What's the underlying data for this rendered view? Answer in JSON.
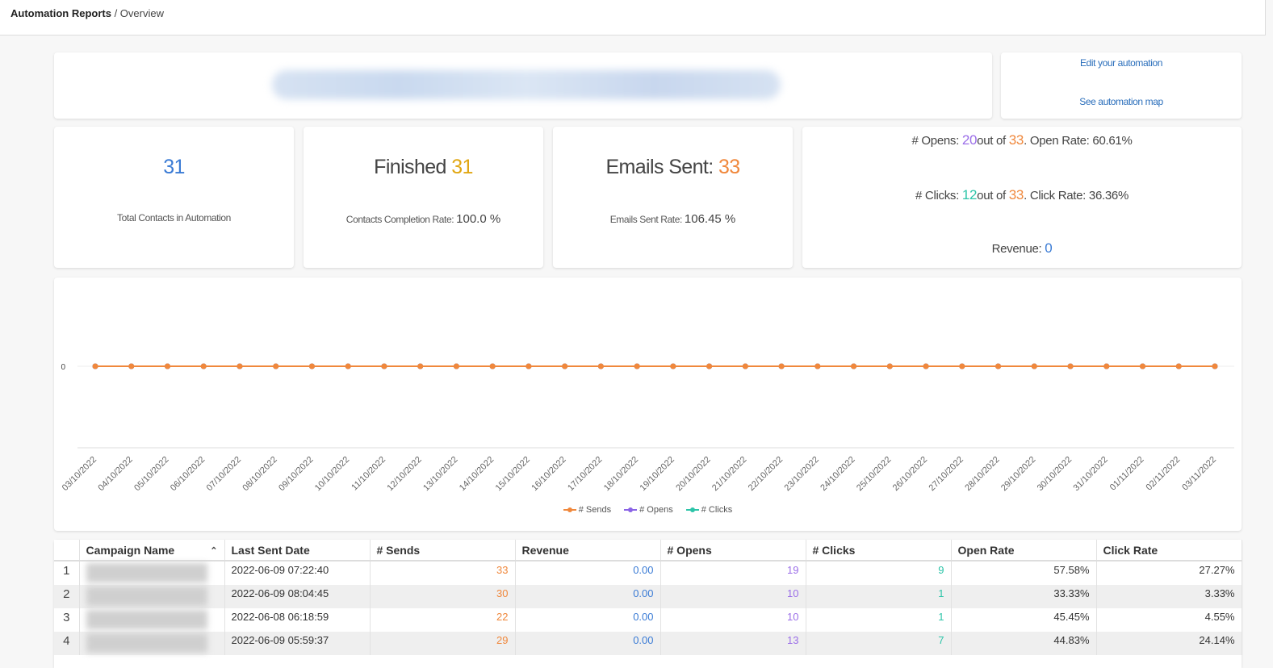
{
  "breadcrumb": {
    "root": "Automation Reports",
    "separator": " / ",
    "current": "Overview"
  },
  "links": {
    "edit": "Edit your automation",
    "map": "See automation map"
  },
  "stats": {
    "contacts": {
      "value": "31",
      "label": "Total Contacts in Automation"
    },
    "finished": {
      "label": "Finished",
      "value": "31",
      "sub_label": "Contacts Completion Rate:",
      "sub_value": "100.0 %"
    },
    "emails": {
      "label": "Emails Sent:",
      "value": "33",
      "sub_label": "Emails Sent Rate:",
      "sub_value": "106.45 %"
    }
  },
  "metrics": {
    "opens_label": "# Opens:",
    "opens": "20",
    "of1": "out of",
    "total1": "33",
    "open_rate_label": ". Open Rate: 60.61%",
    "clicks_label": "# Clicks:",
    "clicks": "12",
    "of2": "out of",
    "total2": "33",
    "click_rate_label": ". Click Rate: 36.36%",
    "revenue_label": "Revenue:",
    "revenue": "0"
  },
  "chart_data": {
    "type": "line",
    "x": [
      "03/10/2022",
      "04/10/2022",
      "05/10/2022",
      "06/10/2022",
      "07/10/2022",
      "08/10/2022",
      "09/10/2022",
      "10/10/2022",
      "11/10/2022",
      "12/10/2022",
      "13/10/2022",
      "14/10/2022",
      "15/10/2022",
      "16/10/2022",
      "17/10/2022",
      "18/10/2022",
      "19/10/2022",
      "20/10/2022",
      "21/10/2022",
      "22/10/2022",
      "23/10/2022",
      "24/10/2022",
      "25/10/2022",
      "26/10/2022",
      "27/10/2022",
      "28/10/2022",
      "29/10/2022",
      "30/10/2022",
      "31/10/2022",
      "01/11/2022",
      "02/11/2022",
      "03/11/2022"
    ],
    "series": [
      {
        "name": "# Sends",
        "color": "#f0883c",
        "values": [
          0,
          0,
          0,
          0,
          0,
          0,
          0,
          0,
          0,
          0,
          0,
          0,
          0,
          0,
          0,
          0,
          0,
          0,
          0,
          0,
          0,
          0,
          0,
          0,
          0,
          0,
          0,
          0,
          0,
          0,
          0,
          0
        ]
      },
      {
        "name": "# Opens",
        "color": "#8a63e6",
        "values": [
          0,
          0,
          0,
          0,
          0,
          0,
          0,
          0,
          0,
          0,
          0,
          0,
          0,
          0,
          0,
          0,
          0,
          0,
          0,
          0,
          0,
          0,
          0,
          0,
          0,
          0,
          0,
          0,
          0,
          0,
          0,
          0
        ]
      },
      {
        "name": "# Clicks",
        "color": "#2cc4a8",
        "values": [
          0,
          0,
          0,
          0,
          0,
          0,
          0,
          0,
          0,
          0,
          0,
          0,
          0,
          0,
          0,
          0,
          0,
          0,
          0,
          0,
          0,
          0,
          0,
          0,
          0,
          0,
          0,
          0,
          0,
          0,
          0,
          0
        ]
      }
    ],
    "yticks": [
      "0"
    ],
    "grid": false,
    "legend": "bottom"
  },
  "table": {
    "columns": [
      "Campaign Name",
      "Last Sent Date",
      "# Sends",
      "Revenue",
      "# Opens",
      "# Clicks",
      "Open Rate",
      "Click Rate"
    ],
    "rows": [
      {
        "index": "1",
        "date": "2022-06-09 07:22:40",
        "sends": "33",
        "revenue": "0.00",
        "opens": "19",
        "clicks": "9",
        "open_rate": "57.58%",
        "click_rate": "27.27%"
      },
      {
        "index": "2",
        "date": "2022-06-09 08:04:45",
        "sends": "30",
        "revenue": "0.00",
        "opens": "10",
        "clicks": "1",
        "open_rate": "33.33%",
        "click_rate": "3.33%"
      },
      {
        "index": "3",
        "date": "2022-06-08 06:18:59",
        "sends": "22",
        "revenue": "0.00",
        "opens": "10",
        "clicks": "1",
        "open_rate": "45.45%",
        "click_rate": "4.55%"
      },
      {
        "index": "4",
        "date": "2022-06-09 05:59:37",
        "sends": "29",
        "revenue": "0.00",
        "opens": "13",
        "clicks": "7",
        "open_rate": "44.83%",
        "click_rate": "24.14%"
      }
    ]
  }
}
